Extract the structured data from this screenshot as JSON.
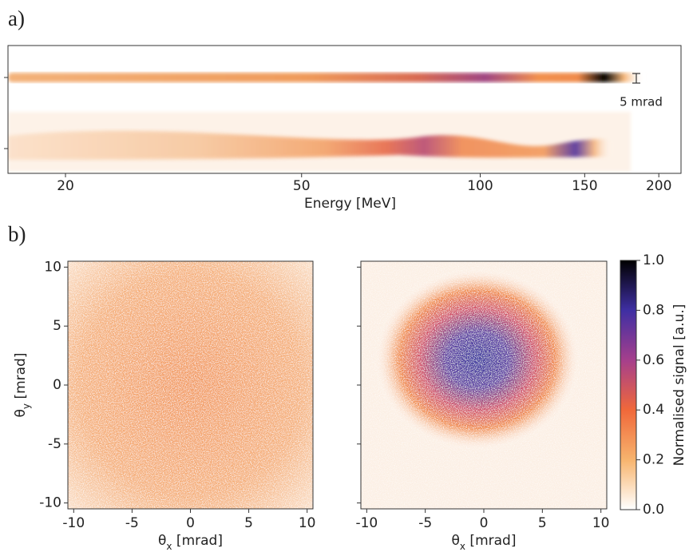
{
  "chart_data": [
    {
      "type": "image",
      "panel_label": "a)",
      "xlabel": "Energy [MeV]",
      "xscale": "log",
      "xlim": [
        16,
        218
      ],
      "xticks": [
        20,
        50,
        100,
        150,
        200
      ],
      "annotation": "5 mrad"
    },
    {
      "type": "heatmap",
      "panel_label": "b)",
      "xlabel": [
        "θ",
        "x",
        " [mrad]"
      ],
      "ylabel": [
        "θ",
        "y",
        " [mrad]"
      ],
      "xlim": [
        -10.5,
        10.5
      ],
      "ylim": [
        -10.5,
        10.5
      ],
      "xticks": [
        -10,
        -5,
        0,
        5,
        10
      ],
      "yticks": [
        -10,
        -5,
        0,
        5,
        10
      ],
      "show_ytick_labels": true
    },
    {
      "type": "heatmap",
      "xlabel": [
        "θ",
        "x",
        " [mrad]"
      ],
      "xlim": [
        -10.5,
        10.5
      ],
      "ylim": [
        -10.5,
        10.5
      ],
      "xticks": [
        -10,
        -5,
        0,
        5,
        10
      ],
      "yticks": [
        -10,
        -5,
        0,
        5,
        10
      ],
      "show_ytick_labels": false
    },
    {
      "type": "colorbar",
      "label": "Normalised signal [a.u.]",
      "ylim": [
        0,
        1
      ],
      "yticks": [
        {
          "value": 0,
          "label": "0.0"
        },
        0.2,
        0.4,
        0.6,
        0.8,
        {
          "value": 1,
          "label": "1.0"
        }
      ],
      "colors": [
        "#ffffff",
        "#f7b46e",
        "#f0683a",
        "#a53f8c",
        "#3f2fa3",
        "#000000"
      ]
    }
  ]
}
